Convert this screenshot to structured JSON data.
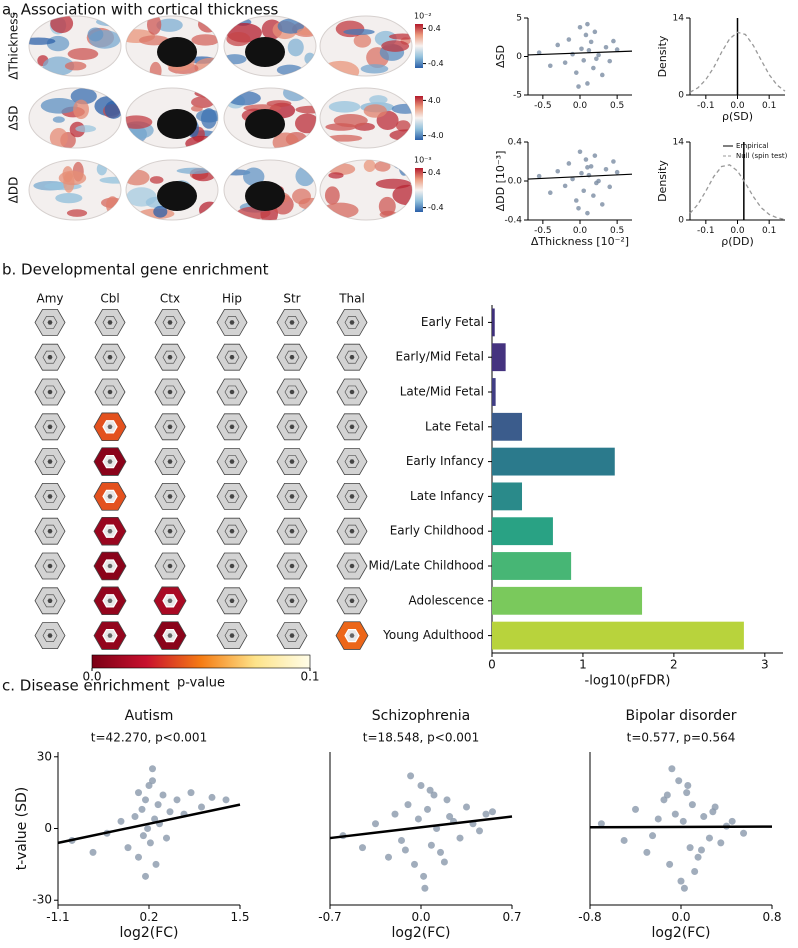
{
  "chart_data": [
    {
      "type": "surface-map",
      "panel_title": "a. Association with cortical thickness",
      "row_labels": [
        "ΔThickness",
        "ΔSD",
        "ΔDD"
      ],
      "cmap": [
        "#2a5fa8",
        "#92c1dc",
        "#f7f2f0",
        "#eb9a7e",
        "#b2182b"
      ],
      "colorbars": [
        {
          "exponent": "10⁻²",
          "lim": [
            -0.5,
            0.5
          ],
          "ticks": [
            0.4,
            -0.4
          ]
        },
        {
          "lim": [
            -5,
            5
          ],
          "ticks": [
            {
              "value": 4,
              "label": "4.0"
            },
            {
              "value": -4,
              "label": "-4.0"
            }
          ]
        },
        {
          "exponent": "10⁻³",
          "lim": [
            -0.5,
            0.5
          ],
          "ticks": [
            0.4,
            -0.4
          ]
        }
      ]
    },
    {
      "type": "scatter",
      "ylabel": "ΔSD",
      "color": "#7b8ca3",
      "xlim": [
        -0.7,
        0.7
      ],
      "ylim": [
        -5,
        5
      ],
      "xticks": [
        -0.5,
        {
          "value": 0,
          "label": "0.0"
        },
        0.5
      ],
      "yticks": [
        5,
        0,
        -5
      ],
      "x": [
        -0.55,
        -0.4,
        -0.3,
        -0.2,
        -0.15,
        -0.1,
        -0.05,
        0,
        0.02,
        0.05,
        0.08,
        0.1,
        0.12,
        0.15,
        0.18,
        0.2,
        0.25,
        0.3,
        0.35,
        0.4,
        0.45,
        0.5,
        0.1,
        -0.02,
        0.22
      ],
      "y": [
        0.5,
        -1.2,
        1.5,
        -0.8,
        2.2,
        0.3,
        -2.1,
        3.8,
        1,
        -0.5,
        2.8,
        -3.5,
        0.8,
        1.9,
        -1.5,
        3.2,
        0.2,
        -2.4,
        1.2,
        -0.6,
        2,
        0.9,
        4.2,
        -3.9,
        -0.3
      ],
      "fit": {
        "x": [
          -0.7,
          0.7
        ],
        "y": [
          0.2,
          0.7
        ]
      }
    },
    {
      "type": "scatter",
      "ylabel": "ΔDD [10⁻³]",
      "xlabel": "ΔThickness [10⁻²]",
      "color": "#7b8ca3",
      "xlim": [
        -0.7,
        0.7
      ],
      "ylim": [
        -0.4,
        0.4
      ],
      "xticks": [
        -0.5,
        {
          "value": 0,
          "label": "0.0"
        },
        0.5
      ],
      "yticks": [
        0.4,
        {
          "value": 0,
          "label": "0.0"
        },
        -0.4
      ],
      "x": [
        -0.55,
        -0.4,
        -0.3,
        -0.2,
        -0.15,
        -0.1,
        -0.05,
        0,
        0.02,
        0.05,
        0.08,
        0.1,
        0.12,
        0.15,
        0.18,
        0.2,
        0.25,
        0.3,
        0.35,
        0.4,
        0.45,
        0.5,
        0.1,
        -0.02,
        0.22
      ],
      "y": [
        0.05,
        -0.12,
        0.1,
        -0.05,
        0.18,
        0.02,
        -0.2,
        0.3,
        0.08,
        -0.1,
        0.22,
        -0.33,
        0.06,
        0.15,
        -0.15,
        0.26,
        0,
        -0.24,
        0.12,
        -0.06,
        0.2,
        0.09,
        0.14,
        -0.28,
        -0.02
      ],
      "fit": {
        "x": [
          -0.7,
          0.7
        ],
        "y": [
          0.02,
          0.07
        ]
      }
    },
    {
      "type": "density",
      "ylabel": "Density",
      "xlabel": "ρ(SD)",
      "xlim": [
        -0.15,
        0.15
      ],
      "ylim": [
        0,
        14
      ],
      "xticks": [
        -0.1,
        {
          "value": 0,
          "label": "0.0"
        },
        0.1
      ],
      "yticks": [
        14,
        0
      ],
      "series": [
        {
          "color": "#000000",
          "x": 0
        },
        {
          "color": "#999999",
          "linestyle": "dashed",
          "x": [
            -0.15,
            -0.125,
            -0.1,
            -0.075,
            -0.05,
            -0.025,
            0,
            0.025,
            0.05,
            0.075,
            0.1,
            0.125,
            0.15
          ],
          "values": [
            0.5,
            1.3,
            2.8,
            5,
            7.8,
            10.2,
            11.4,
            11,
            9,
            6.3,
            3.7,
            1.8,
            0.7
          ]
        }
      ]
    },
    {
      "type": "density",
      "ylabel": "Density",
      "xlabel": "ρ(DD)",
      "legend": true,
      "xlim": [
        -0.15,
        0.15
      ],
      "ylim": [
        0,
        14
      ],
      "xticks": [
        -0.1,
        {
          "value": 0,
          "label": "0.0"
        },
        0.1
      ],
      "yticks": [
        14,
        0
      ],
      "series": [
        {
          "name": "Empirical",
          "color": "#000000",
          "x": 0.02
        },
        {
          "name": "Null (spin test)",
          "color": "#999999",
          "linestyle": "dashed",
          "x": [
            -0.15,
            -0.125,
            -0.1,
            -0.075,
            -0.05,
            -0.025,
            0,
            0.025,
            0.05,
            0.075,
            0.1,
            0.125,
            0.15
          ],
          "values": [
            1.2,
            2.8,
            5.2,
            7.8,
            9.6,
            9.9,
            8.8,
            6.6,
            4.2,
            2.2,
            1,
            0.4,
            0.1
          ]
        }
      ]
    },
    {
      "type": "hexgrid",
      "panel_title": "b. Developmental gene enrichment",
      "columns": [
        "Amy",
        "Cbl",
        "Ctx",
        "Hip",
        "Str",
        "Thal"
      ],
      "cmap": [
        "#7a0015",
        "#c8102e",
        "#f57c14",
        "#fde38a",
        "#fffde8"
      ],
      "colorbar": {
        "label": "p-value",
        "lim": [
          0,
          0.1
        ],
        "ticks": [
          {
            "value": 0,
            "label": "0.0"
          },
          0.1
        ]
      },
      "values": [
        [
          null,
          null,
          null,
          null,
          null,
          null
        ],
        [
          null,
          null,
          null,
          null,
          null,
          null
        ],
        [
          null,
          null,
          null,
          null,
          null,
          null
        ],
        [
          null,
          0.04,
          null,
          null,
          null,
          null
        ],
        [
          null,
          0.005,
          null,
          null,
          null,
          null
        ],
        [
          null,
          0.04,
          null,
          null,
          null,
          null
        ],
        [
          null,
          0.01,
          null,
          null,
          null,
          null
        ],
        [
          null,
          0.005,
          null,
          null,
          null,
          null
        ],
        [
          null,
          0.008,
          0.015,
          null,
          null,
          null
        ],
        [
          null,
          0.008,
          0.005,
          null,
          null,
          0.045
        ]
      ]
    },
    {
      "type": "bar",
      "xlabel": "-log10(pFDR)",
      "categories": [
        "Early Fetal",
        "Early/Mid Fetal",
        "Late/Mid Fetal",
        "Late Fetal",
        "Early Infancy",
        "Late Infancy",
        "Early Childhood",
        "Mid/Late Childhood",
        "Adolescence",
        "Young Adulthood"
      ],
      "values": [
        0.03,
        0.15,
        0.04,
        0.33,
        1.35,
        0.33,
        0.67,
        0.87,
        1.65,
        2.77
      ],
      "colors": [
        "#3e2f7a",
        "#45337f",
        "#413e84",
        "#3b5c8c",
        "#2b7a8c",
        "#2a8a8a",
        "#29a284",
        "#47b675",
        "#7ac95c",
        "#b8d33c"
      ],
      "xlim": [
        0,
        3.2
      ],
      "xticks": [
        0,
        1,
        2,
        3
      ]
    },
    {
      "type": "scatter",
      "panel_title": "c. Disease enrichment",
      "title": "Autism",
      "annotation": "t=42.270, p<0.001",
      "xlabel": "log2(FC)",
      "ylabel": "t-value (SD)",
      "color": "#8a99ab",
      "xlim": [
        -1.1,
        1.5
      ],
      "ylim": [
        -32,
        32
      ],
      "xticks": [
        -1.1,
        0.2,
        1.5
      ],
      "yticks": [
        30,
        0,
        -30
      ],
      "x": [
        -0.9,
        -0.6,
        -0.4,
        -0.2,
        -0.1,
        0,
        0.05,
        0.1,
        0.12,
        0.15,
        0.18,
        0.2,
        0.22,
        0.25,
        0.28,
        0.3,
        0.33,
        0.35,
        0.4,
        0.45,
        0.5,
        0.6,
        0.7,
        0.8,
        0.95,
        1.1,
        1.3,
        0.15,
        0.25,
        0.05
      ],
      "y": [
        -5,
        -10,
        -2,
        3,
        -8,
        5,
        -12,
        8,
        -3,
        12,
        0,
        18,
        -6,
        25,
        4,
        -15,
        10,
        2,
        14,
        -4,
        7,
        12,
        6,
        15,
        9,
        13,
        12,
        -20,
        20,
        15
      ],
      "fit": {
        "x": [
          -1.1,
          1.5
        ],
        "y": [
          -6,
          10
        ]
      }
    },
    {
      "type": "scatter",
      "title": "Schizophrenia",
      "annotation": "t=18.548, p<0.001",
      "xlabel": "log2(FC)",
      "color": "#8a99ab",
      "xlim": [
        -0.7,
        0.7
      ],
      "ylim": [
        -32,
        32
      ],
      "xticks": [
        -0.7,
        {
          "value": 0,
          "label": "0.0"
        },
        0.7
      ],
      "x": [
        -0.6,
        -0.45,
        -0.35,
        -0.25,
        -0.2,
        -0.15,
        -0.1,
        -0.05,
        -0.02,
        0,
        0.02,
        0.05,
        0.08,
        0.1,
        0.12,
        0.15,
        0.2,
        0.25,
        0.3,
        0.35,
        0.4,
        0.5,
        -0.08,
        0.03,
        0.07,
        0.18,
        -0.12,
        0.22,
        0.45,
        0.55
      ],
      "y": [
        -3,
        -8,
        2,
        -12,
        6,
        -5,
        10,
        -15,
        4,
        18,
        -20,
        8,
        -7,
        14,
        0,
        -10,
        12,
        3,
        -4,
        9,
        2,
        6,
        22,
        -25,
        16,
        -14,
        -9,
        5,
        -1,
        7
      ],
      "fit": {
        "x": [
          -0.7,
          0.7
        ],
        "y": [
          -4,
          5
        ]
      }
    },
    {
      "type": "scatter",
      "title": "Bipolar disorder",
      "annotation": "t=0.577, p=0.564",
      "xlabel": "log2(FC)",
      "color": "#8a99ab",
      "xlim": [
        -0.8,
        0.8
      ],
      "ylim": [
        -32,
        32
      ],
      "xticks": [
        -0.8,
        {
          "value": 0,
          "label": "0.0"
        },
        0.8
      ],
      "x": [
        -0.7,
        -0.5,
        -0.4,
        -0.3,
        -0.2,
        -0.15,
        -0.1,
        -0.05,
        -0.02,
        0,
        0.02,
        0.05,
        0.08,
        0.1,
        0.15,
        0.2,
        0.25,
        0.3,
        0.35,
        0.45,
        0.55,
        -0.08,
        0.03,
        0.12,
        -0.12,
        0.18,
        0.4,
        -0.25,
        0.28,
        0.06
      ],
      "y": [
        2,
        -5,
        8,
        -10,
        4,
        12,
        -15,
        6,
        20,
        -22,
        3,
        15,
        -8,
        10,
        -12,
        5,
        -4,
        9,
        -6,
        3,
        -2,
        25,
        -25,
        -18,
        14,
        -9,
        1,
        -3,
        7,
        18
      ],
      "fit": {
        "x": [
          -0.8,
          0.8
        ],
        "y": [
          0.5,
          0.8
        ]
      }
    }
  ]
}
